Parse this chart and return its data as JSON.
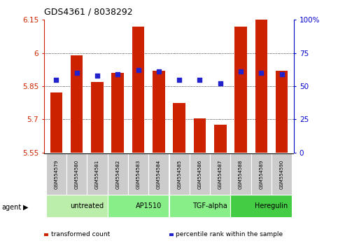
{
  "title": "GDS4361 / 8038292",
  "samples": [
    "GSM554579",
    "GSM554580",
    "GSM554581",
    "GSM554582",
    "GSM554583",
    "GSM554584",
    "GSM554585",
    "GSM554586",
    "GSM554587",
    "GSM554588",
    "GSM554589",
    "GSM554590"
  ],
  "bar_values": [
    5.82,
    5.99,
    5.87,
    5.91,
    6.12,
    5.92,
    5.775,
    5.705,
    5.675,
    6.12,
    6.15,
    5.92
  ],
  "dot_values": [
    55,
    60,
    58,
    59,
    62,
    61,
    55,
    55,
    52,
    61,
    60,
    59
  ],
  "ymin": 5.55,
  "ymax": 6.15,
  "yticks": [
    5.55,
    5.7,
    5.85,
    6.0,
    6.15
  ],
  "ytick_labels": [
    "5.55",
    "5.7",
    "5.85",
    "6",
    "6.15"
  ],
  "right_yticks": [
    0,
    25,
    50,
    75,
    100
  ],
  "right_ytick_labels": [
    "0",
    "25",
    "50",
    "75",
    "100%"
  ],
  "grid_lines": [
    5.7,
    5.85,
    6.0
  ],
  "bar_color": "#cc2200",
  "dot_color": "#2222cc",
  "agent_groups": [
    {
      "label": "untreated",
      "start": 0,
      "end": 3,
      "color": "#bbeeaa"
    },
    {
      "label": "AP1510",
      "start": 3,
      "end": 6,
      "color": "#88ee88"
    },
    {
      "label": "TGF-alpha",
      "start": 6,
      "end": 9,
      "color": "#88ee88"
    },
    {
      "label": "Heregulin",
      "start": 9,
      "end": 12,
      "color": "#44cc44"
    }
  ],
  "agent_label": "agent",
  "legend_items": [
    {
      "label": "transformed count",
      "color": "#cc2200"
    },
    {
      "label": "percentile rank within the sample",
      "color": "#2222cc"
    }
  ],
  "bar_width": 0.6,
  "axis_color_left": "#cc2200",
  "axis_color_right": "#0000cc",
  "sample_box_color": "#cccccc",
  "border_color": "#888888"
}
